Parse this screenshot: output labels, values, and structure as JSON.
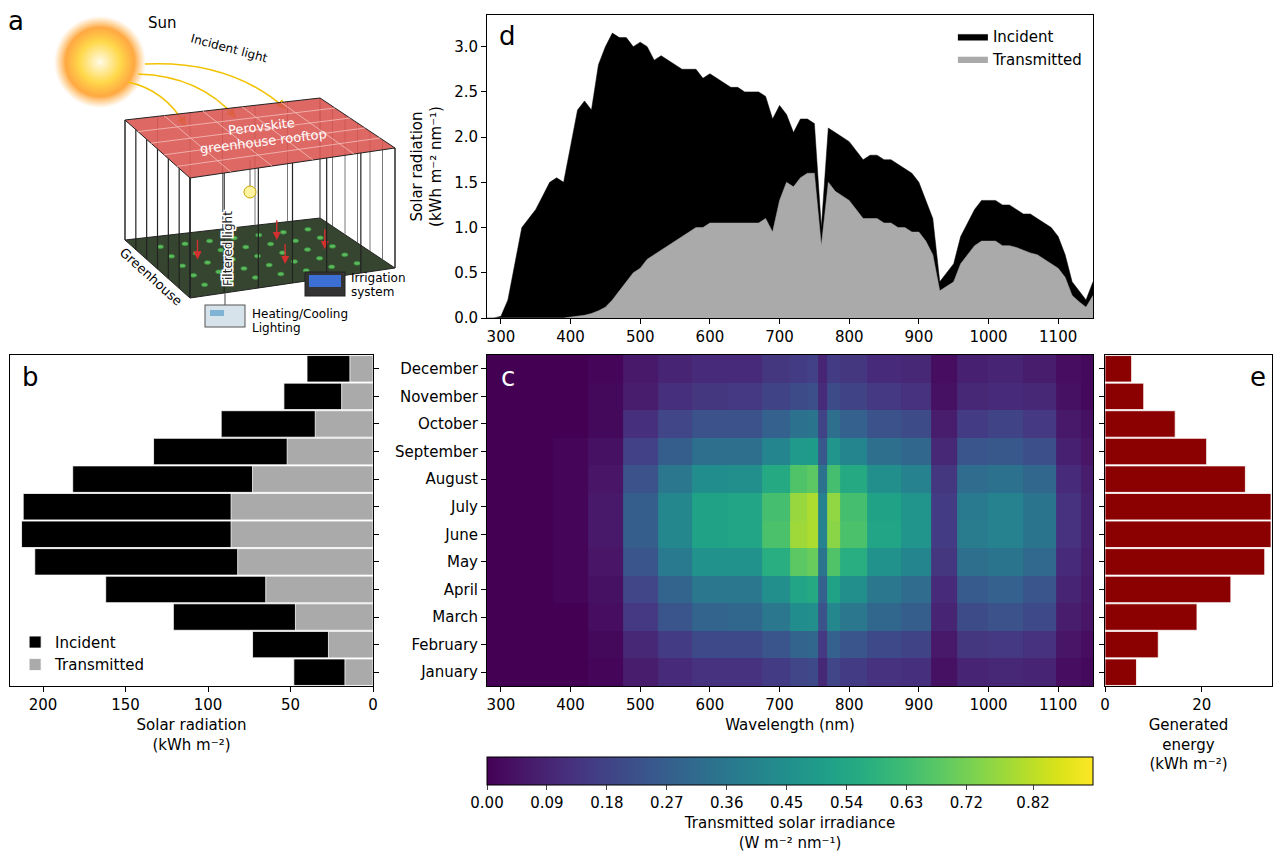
{
  "chart_data": [
    {
      "panel": "b",
      "type": "bar",
      "orientation": "horizontal",
      "xlabel": "Solar radiation (kWh m⁻²)",
      "categories": [
        "January",
        "February",
        "March",
        "April",
        "May",
        "June",
        "July",
        "August",
        "September",
        "October",
        "November",
        "December"
      ],
      "series": [
        {
          "name": "Incident",
          "color": "#000000",
          "values": [
            48,
            73,
            121,
            162,
            205,
            213,
            212,
            182,
            133,
            92,
            54,
            40
          ]
        },
        {
          "name": "Transmitted",
          "color": "#aaaaaa",
          "values": [
            17,
            27,
            47,
            65,
            82,
            86,
            86,
            73,
            52,
            35,
            19,
            14
          ]
        }
      ],
      "xlim": [
        220,
        0
      ],
      "xticks": [
        0,
        50,
        100,
        150,
        200
      ],
      "legend": "lower left",
      "tick_labels": "x"
    },
    {
      "panel": "c",
      "type": "heatmap",
      "xlabel": "Wavelength (nm)",
      "color": "viridis",
      "x": [
        290,
        350,
        400,
        450,
        500,
        550,
        600,
        650,
        700,
        730,
        750,
        762,
        775,
        800,
        850,
        900,
        935,
        975,
        1025,
        1075,
        1120,
        1145
      ],
      "categories": [
        "January",
        "February",
        "March",
        "April",
        "May",
        "June",
        "July",
        "August",
        "September",
        "October",
        "November",
        "December"
      ],
      "z": [
        [
          0,
          0,
          0,
          0.01,
          0.07,
          0.11,
          0.13,
          0.13,
          0.16,
          0.19,
          0.2,
          0.1,
          0.19,
          0.16,
          0.13,
          0.12,
          0.04,
          0.09,
          0.1,
          0.09,
          0.03,
          0.02
        ],
        [
          0,
          0,
          0,
          0.02,
          0.1,
          0.16,
          0.2,
          0.2,
          0.24,
          0.29,
          0.3,
          0.15,
          0.28,
          0.24,
          0.2,
          0.18,
          0.06,
          0.14,
          0.15,
          0.13,
          0.05,
          0.03
        ],
        [
          0,
          0,
          0,
          0.03,
          0.15,
          0.24,
          0.29,
          0.3,
          0.36,
          0.44,
          0.45,
          0.23,
          0.42,
          0.36,
          0.3,
          0.27,
          0.09,
          0.21,
          0.23,
          0.2,
          0.07,
          0.05
        ],
        [
          0,
          0,
          0.01,
          0.04,
          0.19,
          0.29,
          0.36,
          0.36,
          0.45,
          0.53,
          0.55,
          0.28,
          0.52,
          0.45,
          0.36,
          0.32,
          0.11,
          0.26,
          0.28,
          0.24,
          0.09,
          0.06
        ],
        [
          0,
          0,
          0.01,
          0.05,
          0.24,
          0.37,
          0.46,
          0.46,
          0.57,
          0.68,
          0.7,
          0.35,
          0.66,
          0.57,
          0.46,
          0.41,
          0.14,
          0.33,
          0.35,
          0.31,
          0.11,
          0.07
        ],
        [
          0,
          0,
          0.01,
          0.06,
          0.27,
          0.42,
          0.52,
          0.53,
          0.65,
          0.78,
          0.8,
          0.4,
          0.75,
          0.65,
          0.53,
          0.47,
          0.16,
          0.38,
          0.4,
          0.35,
          0.13,
          0.08
        ],
        [
          0,
          0,
          0.01,
          0.06,
          0.27,
          0.42,
          0.52,
          0.53,
          0.64,
          0.77,
          0.8,
          0.4,
          0.76,
          0.64,
          0.52,
          0.47,
          0.16,
          0.37,
          0.4,
          0.35,
          0.13,
          0.08
        ],
        [
          0,
          0,
          0.01,
          0.05,
          0.23,
          0.36,
          0.44,
          0.45,
          0.55,
          0.66,
          0.68,
          0.34,
          0.64,
          0.55,
          0.45,
          0.4,
          0.14,
          0.32,
          0.34,
          0.3,
          0.11,
          0.07
        ],
        [
          0,
          0,
          0.01,
          0.04,
          0.17,
          0.27,
          0.33,
          0.33,
          0.41,
          0.49,
          0.5,
          0.25,
          0.47,
          0.41,
          0.33,
          0.3,
          0.1,
          0.24,
          0.25,
          0.22,
          0.08,
          0.05
        ],
        [
          0,
          0,
          0,
          0.02,
          0.12,
          0.19,
          0.23,
          0.23,
          0.28,
          0.34,
          0.35,
          0.18,
          0.33,
          0.28,
          0.23,
          0.21,
          0.07,
          0.16,
          0.18,
          0.15,
          0.06,
          0.04
        ],
        [
          0,
          0,
          0,
          0.02,
          0.07,
          0.12,
          0.14,
          0.15,
          0.18,
          0.21,
          0.22,
          0.11,
          0.21,
          0.18,
          0.15,
          0.13,
          0.04,
          0.1,
          0.11,
          0.1,
          0.04,
          0.02
        ],
        [
          0,
          0,
          0,
          0.01,
          0.06,
          0.09,
          0.11,
          0.11,
          0.14,
          0.16,
          0.17,
          0.09,
          0.16,
          0.14,
          0.11,
          0.1,
          0.03,
          0.08,
          0.09,
          0.07,
          0.03,
          0.02
        ]
      ],
      "xlim": [
        280,
        1150
      ],
      "xticks": [
        300,
        400,
        500,
        600,
        700,
        800,
        900,
        1000,
        1100
      ],
      "colorbar": {
        "title": "Transmitted solar irradiance (W m⁻² nm⁻¹)",
        "range": [
          0,
          0.91
        ],
        "ticks": [
          {
            "value": 0,
            "label": "0.00"
          },
          {
            "value": 0.09,
            "label": "0.09"
          },
          {
            "value": 0.18,
            "label": "0.18"
          },
          {
            "value": 0.27,
            "label": "0.27"
          },
          {
            "value": 0.36,
            "label": "0.36"
          },
          {
            "value": 0.45,
            "label": "0.45"
          },
          {
            "value": 0.54,
            "label": "0.54"
          },
          {
            "value": 0.63,
            "label": "0.63"
          },
          {
            "value": 0.72,
            "label": "0.72"
          },
          {
            "value": 0.82,
            "label": "0.82"
          }
        ]
      }
    },
    {
      "panel": "d",
      "type": "area",
      "ylabel": "Solar radiation (kWh m⁻² nm⁻¹)",
      "x": [
        280,
        290,
        300,
        310,
        320,
        330,
        340,
        350,
        360,
        370,
        380,
        390,
        400,
        410,
        420,
        430,
        440,
        450,
        460,
        470,
        480,
        490,
        500,
        510,
        520,
        530,
        540,
        550,
        560,
        570,
        580,
        590,
        600,
        610,
        620,
        630,
        640,
        650,
        660,
        670,
        680,
        690,
        700,
        710,
        720,
        730,
        740,
        750,
        760,
        770,
        780,
        790,
        800,
        810,
        820,
        830,
        840,
        850,
        860,
        870,
        880,
        890,
        900,
        910,
        920,
        930,
        940,
        950,
        960,
        970,
        980,
        990,
        1000,
        1010,
        1020,
        1030,
        1040,
        1050,
        1060,
        1070,
        1080,
        1090,
        1100,
        1110,
        1120,
        1130,
        1140,
        1150
      ],
      "series": [
        {
          "name": "Incident",
          "color": "#000000",
          "values": [
            0,
            0,
            0.02,
            0.2,
            0.6,
            1.0,
            1.1,
            1.2,
            1.35,
            1.5,
            1.55,
            1.5,
            1.9,
            2.3,
            2.4,
            2.3,
            2.8,
            3.0,
            3.15,
            3.1,
            3.1,
            3.0,
            3.05,
            3.0,
            2.85,
            2.9,
            2.85,
            2.8,
            2.75,
            2.75,
            2.75,
            2.65,
            2.7,
            2.65,
            2.6,
            2.55,
            2.55,
            2.5,
            2.5,
            2.5,
            2.45,
            2.2,
            2.35,
            2.25,
            2.05,
            2.2,
            2.2,
            2.15,
            1.0,
            2.1,
            2.05,
            2.0,
            1.95,
            1.85,
            1.75,
            1.8,
            1.8,
            1.75,
            1.75,
            1.7,
            1.65,
            1.6,
            1.5,
            1.3,
            1.1,
            0.4,
            0.5,
            0.6,
            0.9,
            1.05,
            1.2,
            1.3,
            1.3,
            1.3,
            1.25,
            1.25,
            1.2,
            1.15,
            1.15,
            1.1,
            1.05,
            1.0,
            0.9,
            0.7,
            0.4,
            0.3,
            0.2,
            0.4
          ]
        },
        {
          "name": "Transmitted",
          "color": "#aaaaaa",
          "values": [
            0,
            0,
            0,
            0,
            0,
            0,
            0,
            0,
            0,
            0,
            0,
            0,
            0.01,
            0.02,
            0.03,
            0.05,
            0.08,
            0.12,
            0.2,
            0.3,
            0.4,
            0.5,
            0.55,
            0.65,
            0.7,
            0.75,
            0.8,
            0.85,
            0.9,
            0.95,
            1.0,
            1.0,
            1.05,
            1.05,
            1.05,
            1.05,
            1.05,
            1.05,
            1.05,
            1.05,
            1.1,
            0.95,
            1.3,
            1.5,
            1.45,
            1.55,
            1.6,
            1.6,
            0.8,
            1.5,
            1.4,
            1.35,
            1.3,
            1.2,
            1.1,
            1.1,
            1.1,
            1.05,
            1.05,
            1.0,
            1.0,
            0.95,
            0.95,
            0.85,
            0.7,
            0.3,
            0.35,
            0.4,
            0.6,
            0.7,
            0.8,
            0.85,
            0.85,
            0.85,
            0.8,
            0.8,
            0.78,
            0.75,
            0.72,
            0.7,
            0.65,
            0.6,
            0.55,
            0.45,
            0.25,
            0.18,
            0.12,
            0.25
          ]
        }
      ],
      "xlim": [
        280,
        1150
      ],
      "xticks": [
        300,
        400,
        500,
        600,
        700,
        800,
        900,
        1000,
        1100
      ],
      "ylim": [
        0,
        3.35
      ],
      "yticks": [
        {
          "value": 0,
          "label": "0.0"
        },
        {
          "value": 0.5,
          "label": "0.5"
        },
        {
          "value": 1,
          "label": "1.0"
        },
        {
          "value": 1.5,
          "label": "1.5"
        },
        {
          "value": 2,
          "label": "2.0"
        },
        {
          "value": 2.5,
          "label": "2.5"
        },
        {
          "value": 3,
          "label": "3.0"
        }
      ],
      "legend": "upper right"
    },
    {
      "panel": "e",
      "type": "bar",
      "orientation": "horizontal",
      "xlabel": "Generated energy (kWh m⁻²)",
      "categories": [
        "January",
        "February",
        "March",
        "April",
        "May",
        "June",
        "July",
        "August",
        "September",
        "October",
        "November",
        "December"
      ],
      "values": [
        6.5,
        11,
        19,
        26,
        33,
        34.3,
        34.3,
        29,
        21,
        14.5,
        8,
        5.5
      ],
      "color": "#8b0000",
      "xlim": [
        0,
        34.5
      ],
      "xticks": [
        0,
        20
      ],
      "tick_labels": "x"
    }
  ],
  "diagram": {
    "panel": "a",
    "labels": {
      "sun": "Sun",
      "incident": "Incident light",
      "rooftop": "Perovskite greenhouse rooftop",
      "filtered": "Filtered light",
      "greenhouse": "Greenhouse",
      "hvac": "Heating/Cooling Lighting",
      "irrigation": "Irrigation system"
    }
  }
}
